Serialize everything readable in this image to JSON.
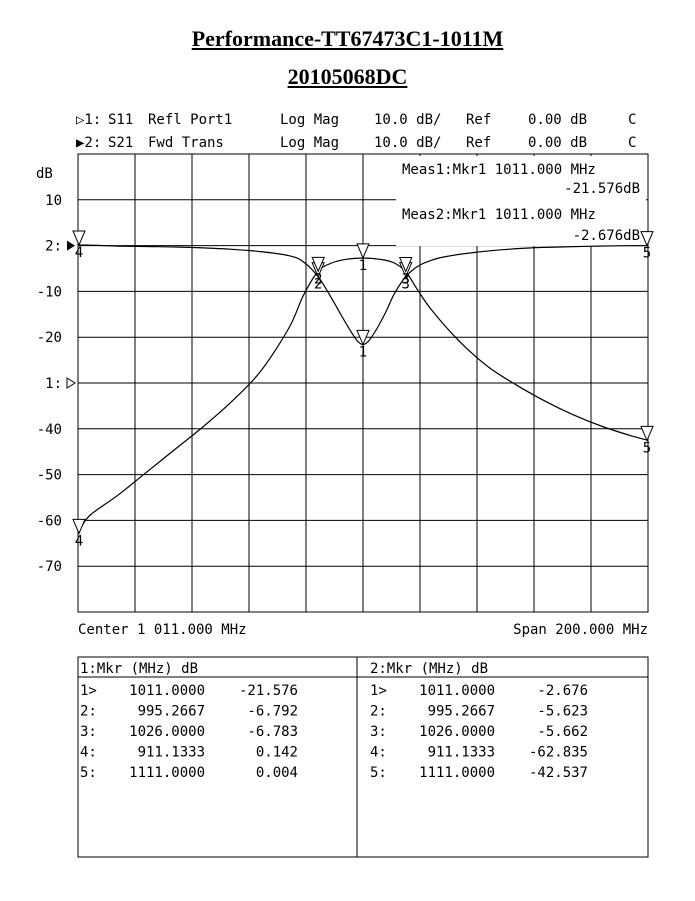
{
  "header": {
    "title": "Performance-TT67473C1-1011M",
    "subtitle": "20105068DC"
  },
  "channels": [
    {
      "indicator": "▷1:",
      "param": "S11",
      "desc": "Refl Port1",
      "format": "Log Mag",
      "scale": "10.0 dB/",
      "ref_label": "Ref",
      "ref_value": "0.00 dB",
      "flag": "C"
    },
    {
      "indicator": "▶2:",
      "param": "S21",
      "desc": "Fwd Trans",
      "format": "Log Mag",
      "scale": "10.0 dB/",
      "ref_label": "Ref",
      "ref_value": "0.00 dB",
      "flag": "C"
    }
  ],
  "meas": [
    {
      "line1": "Meas1:Mkr1 1011.000 MHz",
      "line2": "-21.576dB"
    },
    {
      "line1": "Meas2:Mkr1 1011.000 MHz",
      "line2": "-2.676dB"
    }
  ],
  "footer": {
    "center": "Center 1 011.000 MHz",
    "span": "Span 200.000 MHz"
  },
  "tables": [
    {
      "header": "1:Mkr (MHz)      dB",
      "rows": [
        {
          "id": "1>",
          "freq": "1011.0000",
          "db": "-21.576"
        },
        {
          "id": "2:",
          "freq": "995.2667",
          "db": "-6.792"
        },
        {
          "id": "3:",
          "freq": "1026.0000",
          "db": "-6.783"
        },
        {
          "id": "4:",
          "freq": "911.1333",
          "db": "0.142"
        },
        {
          "id": "5:",
          "freq": "1111.0000",
          "db": "0.004"
        }
      ]
    },
    {
      "header": "2:Mkr (MHz)      dB",
      "rows": [
        {
          "id": "1>",
          "freq": "1011.0000",
          "db": "-2.676"
        },
        {
          "id": "2:",
          "freq": "995.2667",
          "db": "-5.623"
        },
        {
          "id": "3:",
          "freq": "1026.0000",
          "db": "-5.662"
        },
        {
          "id": "4:",
          "freq": "911.1333",
          "db": "-62.835"
        },
        {
          "id": "5:",
          "freq": "1111.0000",
          "db": "-42.537"
        }
      ]
    }
  ],
  "chart_data": {
    "type": "line",
    "xlabel": "",
    "ylabel": "dB",
    "xlim": [
      911,
      1111
    ],
    "ylim": [
      -80,
      20
    ],
    "y_ticks": [
      "10",
      "2:",
      "-10",
      "-20",
      "1:",
      "-40",
      "-50",
      "-60",
      "-70"
    ],
    "grid": true,
    "series": [
      {
        "name": "S11",
        "x": [
          911,
          918,
          925,
          935,
          945,
          955,
          965,
          975,
          985,
          990,
          995.27,
          1000,
          1003,
          1006,
          1009,
          1011,
          1013,
          1016,
          1019,
          1022,
          1026,
          1030,
          1035,
          1040,
          1050,
          1060,
          1070,
          1080,
          1090,
          1100,
          1111
        ],
        "y": [
          0.14,
          0.05,
          -0.1,
          -0.2,
          -0.3,
          -0.5,
          -0.8,
          -1.3,
          -2.2,
          -3.5,
          -6.8,
          -11.5,
          -14.8,
          -18.0,
          -20.8,
          -21.6,
          -20.8,
          -18.0,
          -14.5,
          -10.5,
          -6.8,
          -4.6,
          -3.2,
          -2.4,
          -1.5,
          -0.9,
          -0.5,
          -0.3,
          -0.15,
          -0.05,
          0.0
        ]
      },
      {
        "name": "S21",
        "x": [
          911,
          915,
          925,
          935,
          945,
          955,
          965,
          975,
          985,
          990,
          995.27,
          1000,
          1005,
          1011,
          1017,
          1022,
          1026,
          1030,
          1035,
          1045,
          1055,
          1065,
          1075,
          1085,
          1095,
          1105,
          1111
        ],
        "y": [
          -62.8,
          -59.0,
          -54.5,
          -49.5,
          -44.5,
          -39.5,
          -34.0,
          -27.5,
          -18.0,
          -11.0,
          -5.6,
          -3.8,
          -3.0,
          -2.7,
          -3.0,
          -3.8,
          -5.7,
          -9.5,
          -14.0,
          -21.0,
          -26.5,
          -30.5,
          -34.0,
          -37.0,
          -39.5,
          -41.5,
          -42.5
        ]
      }
    ],
    "markers": {
      "S11": [
        {
          "id": "1",
          "x": 1011.0,
          "y": -21.576
        },
        {
          "id": "2",
          "x": 995.2667,
          "y": -6.792
        },
        {
          "id": "3",
          "x": 1026.0,
          "y": -6.783
        },
        {
          "id": "4",
          "x": 911.1333,
          "y": 0.142
        },
        {
          "id": "5",
          "x": 1111.0,
          "y": 0.004
        }
      ],
      "S21": [
        {
          "id": "1",
          "x": 1011.0,
          "y": -2.676
        },
        {
          "id": "2",
          "x": 995.2667,
          "y": -5.623
        },
        {
          "id": "3",
          "x": 1026.0,
          "y": -5.662
        },
        {
          "id": "4",
          "x": 911.1333,
          "y": -62.835
        },
        {
          "id": "5",
          "x": 1111.0,
          "y": -42.537
        }
      ]
    }
  }
}
